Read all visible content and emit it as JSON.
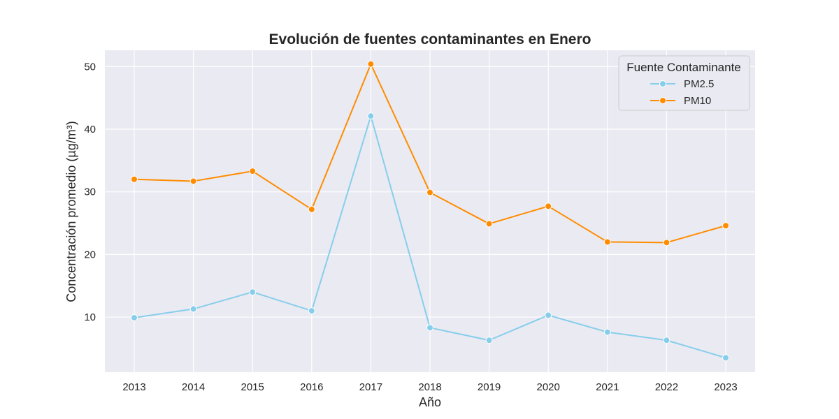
{
  "chart_data": {
    "type": "line",
    "title": "Evolución de fuentes contaminantes en Enero",
    "xlabel": "Año",
    "ylabel": "Concentración promedio (µg/m³)",
    "x": [
      "2013",
      "2014",
      "2015",
      "2016",
      "2017",
      "2018",
      "2019",
      "2020",
      "2021",
      "2022",
      "2023"
    ],
    "yticks": [
      10,
      20,
      30,
      40,
      50
    ],
    "ylim": [
      1.2,
      52.6
    ],
    "grid": true,
    "legend": {
      "title": "Fuente Contaminante",
      "position": "top-right"
    },
    "series": [
      {
        "name": "PM2.5",
        "color": "#87CEEB",
        "values": [
          9.9,
          11.3,
          14.0,
          11.0,
          42.1,
          8.3,
          6.3,
          10.3,
          7.6,
          6.3,
          3.5
        ]
      },
      {
        "name": "PM10",
        "color": "#FF8C00",
        "values": [
          32.0,
          31.7,
          33.3,
          27.2,
          50.4,
          29.9,
          24.9,
          27.7,
          22.0,
          21.9,
          24.6
        ]
      }
    ]
  }
}
